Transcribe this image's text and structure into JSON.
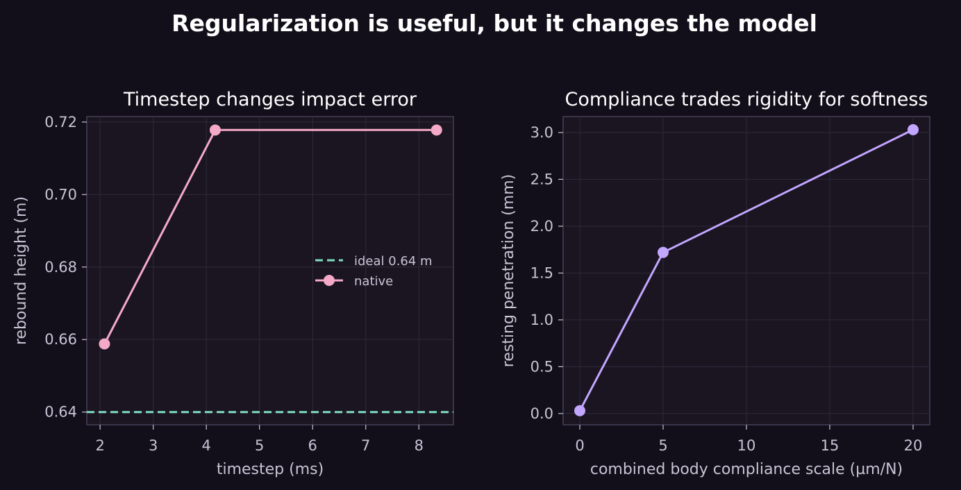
{
  "figure": {
    "title": "Regularization is useful, but it changes the model",
    "background": "#120f1a",
    "axes_background": "#1a1521",
    "axes_edge": "#4e4760",
    "grid_color": "#2e2839",
    "text_color": "#c8c4d6"
  },
  "chart_data": [
    {
      "type": "line",
      "title": "Timestep changes impact error",
      "xlabel": "timestep (ms)",
      "ylabel": "rebound height (m)",
      "xlim": [
        1.75,
        8.65
      ],
      "ylim": [
        0.6365,
        0.7215
      ],
      "xticks": [
        2,
        3,
        4,
        5,
        6,
        7,
        8
      ],
      "yticks": [
        0.64,
        0.66,
        0.68,
        0.7,
        0.72
      ],
      "ytick_labels": [
        "0.64",
        "0.66",
        "0.68",
        "0.70",
        "0.72"
      ],
      "grid": true,
      "legend_position": "center-right",
      "reference_line": {
        "name": "ideal 0.64 m",
        "y": 0.64,
        "color": "#7fdcc0",
        "style": "dashed"
      },
      "series": [
        {
          "name": "native",
          "color": "#f5a9c8",
          "marker": "circle",
          "x": [
            2.083,
            4.167,
            8.333
          ],
          "y": [
            0.6588,
            0.7178,
            0.7178
          ]
        }
      ]
    },
    {
      "type": "line",
      "title": "Compliance trades rigidity for softness",
      "xlabel": "combined body compliance scale (µm/N)",
      "ylabel": "resting penetration (mm)",
      "xlim": [
        -1,
        21
      ],
      "ylim": [
        -0.12,
        3.17
      ],
      "xticks": [
        0,
        5,
        10,
        15,
        20
      ],
      "yticks": [
        0.0,
        0.5,
        1.0,
        1.5,
        2.0,
        2.5,
        3.0
      ],
      "ytick_labels": [
        "0.0",
        "0.5",
        "1.0",
        "1.5",
        "2.0",
        "2.5",
        "3.0"
      ],
      "grid": true,
      "series": [
        {
          "name": "",
          "color": "#c3a6ff",
          "marker": "circle",
          "x": [
            0,
            5,
            20
          ],
          "y": [
            0.03,
            1.72,
            3.03
          ]
        }
      ]
    }
  ]
}
